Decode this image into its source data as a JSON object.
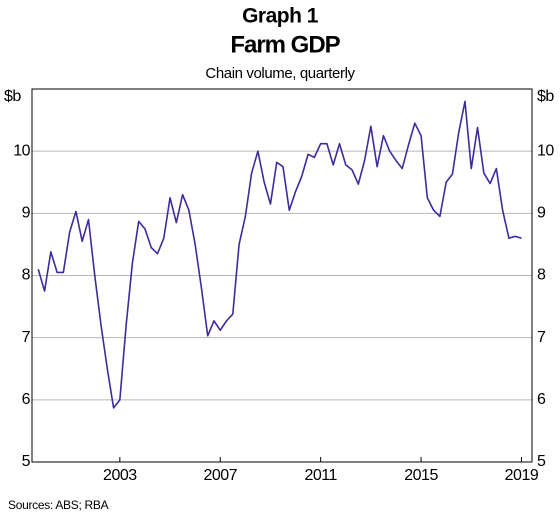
{
  "chart_data": {
    "type": "line",
    "title": "Graph 1",
    "subtitle": "Farm GDP",
    "description": "Chain volume, quarterly",
    "y_unit": "$b",
    "source": "Sources: ABS; RBA",
    "x": [
      2000.25,
      2000.5,
      2000.75,
      2001,
      2001.25,
      2001.5,
      2001.75,
      2002,
      2002.25,
      2002.5,
      2002.75,
      2003,
      2003.25,
      2003.5,
      2003.75,
      2004,
      2004.25,
      2004.5,
      2004.75,
      2005,
      2005.25,
      2005.5,
      2005.75,
      2006,
      2006.25,
      2006.5,
      2006.75,
      2007,
      2007.25,
      2007.5,
      2007.75,
      2008,
      2008.25,
      2008.5,
      2008.75,
      2009,
      2009.25,
      2009.5,
      2009.75,
      2010,
      2010.25,
      2010.5,
      2010.75,
      2011,
      2011.25,
      2011.5,
      2011.75,
      2012,
      2012.25,
      2012.5,
      2012.75,
      2013,
      2013.25,
      2013.5,
      2013.75,
      2014,
      2014.25,
      2014.5,
      2014.75,
      2015,
      2015.25,
      2015.5,
      2015.75,
      2016,
      2016.25,
      2016.5,
      2016.75,
      2017,
      2017.25,
      2017.5,
      2017.75,
      2018,
      2018.25,
      2018.5,
      2018.75,
      2019,
      2019.25,
      2019.5
    ],
    "series": [
      {
        "name": "Farm GDP",
        "color": "#3f2a9e",
        "values": [
          8.1,
          7.75,
          8.38,
          8.05,
          8.05,
          8.7,
          9.03,
          8.55,
          8.9,
          8.0,
          7.2,
          6.5,
          5.87,
          6.0,
          7.2,
          8.2,
          8.87,
          8.75,
          8.45,
          8.35,
          8.6,
          9.25,
          8.85,
          9.3,
          9.05,
          8.5,
          7.8,
          7.03,
          7.27,
          7.12,
          7.27,
          7.38,
          8.5,
          8.95,
          9.65,
          10.0,
          9.5,
          9.15,
          9.82,
          9.75,
          9.05,
          9.35,
          9.6,
          9.95,
          9.9,
          10.12,
          10.12,
          9.78,
          10.12,
          9.78,
          9.7,
          9.47,
          9.85,
          10.4,
          9.75,
          10.25,
          10.0,
          9.85,
          9.72,
          10.1,
          10.45,
          10.25,
          9.25,
          9.05,
          8.95,
          9.5,
          9.63,
          10.3,
          10.8,
          9.72,
          10.38,
          9.65,
          9.48,
          9.72,
          9.05,
          8.6,
          8.63,
          8.6
        ]
      }
    ],
    "xlim": [
      2000,
      2019.92
    ],
    "xticks": [
      {
        "value": 2003.5,
        "label": "2003"
      },
      {
        "value": 2007.5,
        "label": "2007"
      },
      {
        "value": 2011.5,
        "label": "2011"
      },
      {
        "value": 2015.5,
        "label": "2015"
      },
      {
        "value": 2019.5,
        "label": "2019"
      }
    ],
    "ylim": [
      5,
      11
    ],
    "yticks": [
      5,
      6,
      7,
      8,
      9,
      10
    ],
    "grid": true
  }
}
